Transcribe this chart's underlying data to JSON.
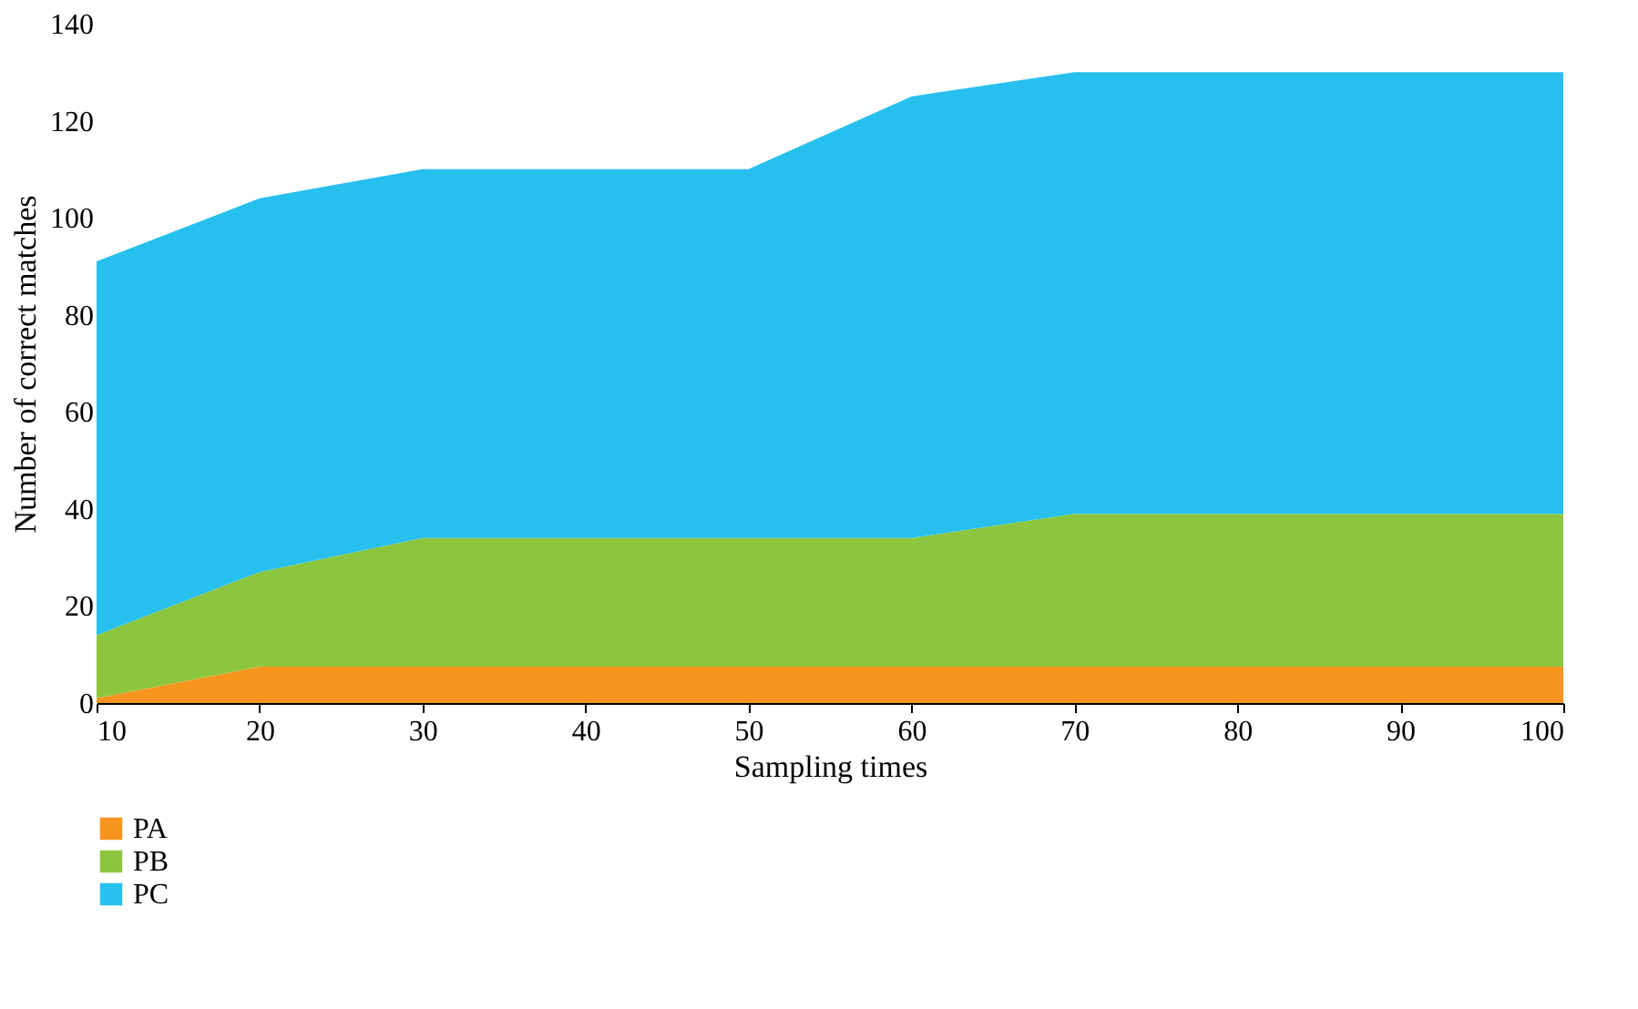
{
  "chart_data": {
    "type": "area",
    "xlabel": "Sampling times",
    "ylabel": "Number of correct matches",
    "x": [
      10,
      20,
      30,
      40,
      50,
      60,
      70,
      80,
      90,
      100
    ],
    "stacked": true,
    "series": [
      {
        "name": "PA",
        "color": "#f7941d",
        "values": [
          1,
          7.5,
          7.5,
          7.5,
          7.5,
          7.5,
          7.5,
          7.5,
          7.5,
          7.5
        ]
      },
      {
        "name": "PB",
        "color": "#8cc63f",
        "values": [
          13,
          19.5,
          26.5,
          26.5,
          26.5,
          26.5,
          31.5,
          31.5,
          31.5,
          31.5
        ]
      },
      {
        "name": "PC",
        "color": "#27c0ee",
        "values": [
          77,
          77,
          76,
          76,
          76,
          91,
          91,
          91,
          91,
          91
        ]
      }
    ],
    "xlim": [
      10,
      100
    ],
    "xticks": [
      10,
      20,
      30,
      40,
      50,
      60,
      70,
      80,
      90,
      100
    ],
    "ylim": [
      0,
      140
    ],
    "yticks": [
      0,
      20,
      40,
      60,
      80,
      100,
      120,
      140
    ],
    "grid": false,
    "legend": "bottom left"
  }
}
